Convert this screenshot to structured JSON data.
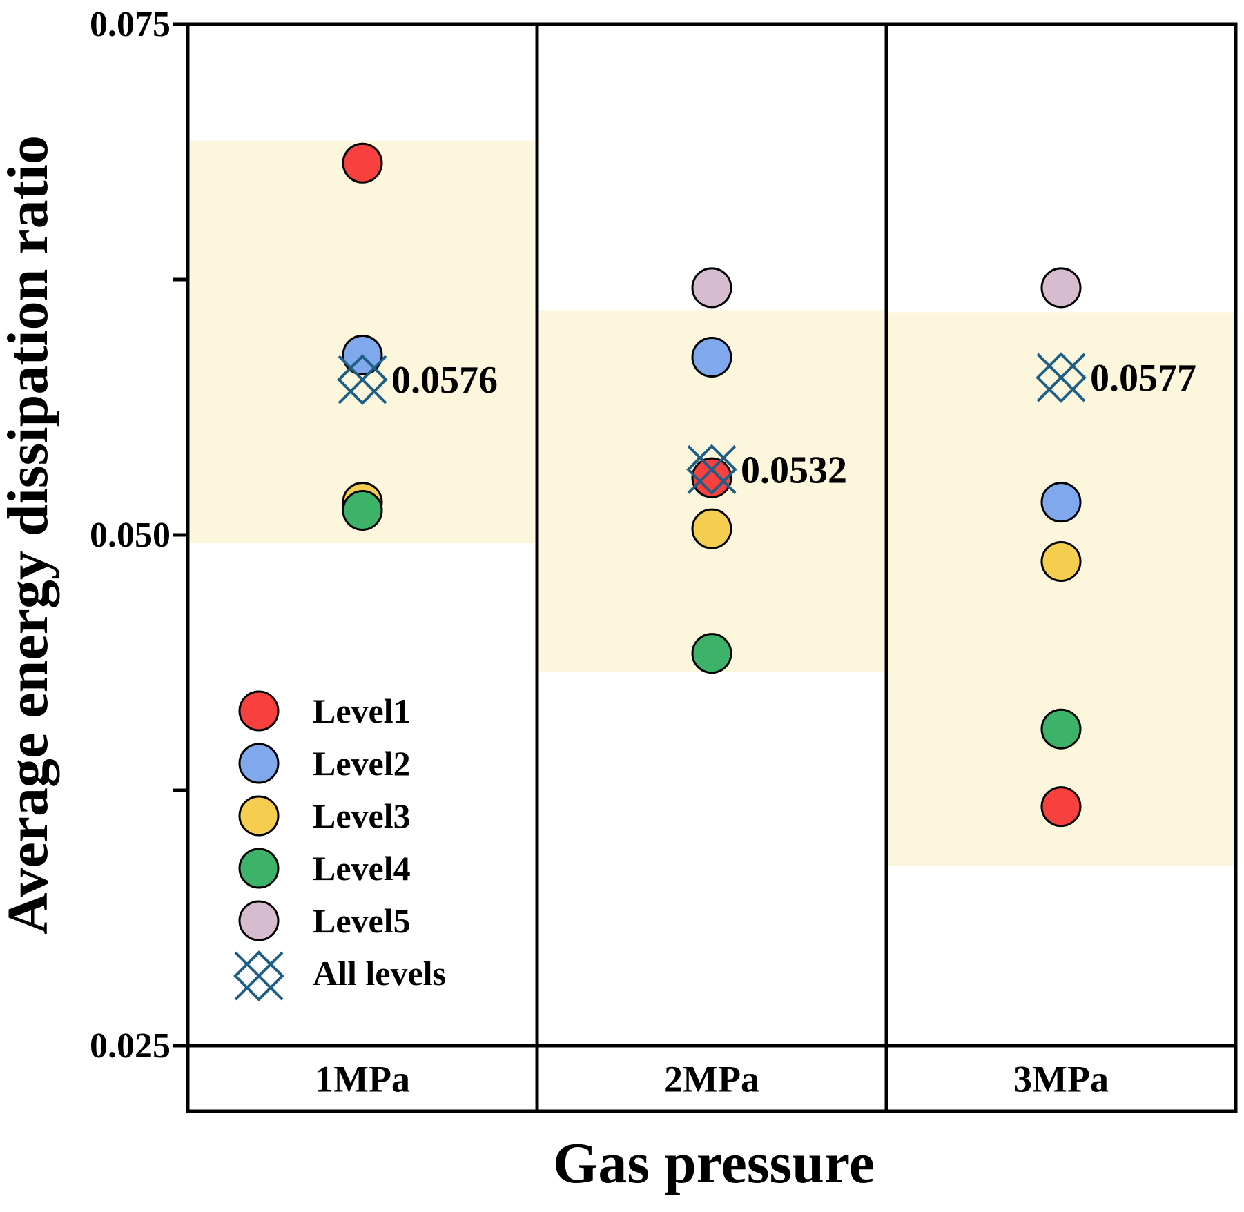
{
  "chart_data": {
    "type": "scatter",
    "xlabel": "Gas pressure",
    "ylabel": "Average energy dissipation ratio",
    "ylim": [
      0.025,
      0.075
    ],
    "yticks": [
      0.025,
      0.0375,
      0.05,
      0.0625,
      0.075
    ],
    "ytick_labels": [
      "0.025",
      "",
      "0.050",
      "",
      "0.075"
    ],
    "categories": [
      "1MPa",
      "2MPa",
      "3MPa"
    ],
    "band_color": "#FCF6DC",
    "bands": [
      {
        "category": "1MPa",
        "low": 0.0496,
        "high": 0.0693
      },
      {
        "category": "2MPa",
        "low": 0.0433,
        "high": 0.061
      },
      {
        "category": "3MPa",
        "low": 0.0338,
        "high": 0.0609
      }
    ],
    "series": [
      {
        "name": "Level1",
        "color": "#F8413E",
        "values": [
          0.0682,
          0.0528,
          0.0367
        ]
      },
      {
        "name": "Level2",
        "color": "#7FA9EC",
        "values": [
          0.0588,
          0.0587,
          0.0516
        ]
      },
      {
        "name": "Level3",
        "color": "#F6CE4F",
        "values": [
          0.0516,
          0.0503,
          0.0487
        ]
      },
      {
        "name": "Level4",
        "color": "#3DB36A",
        "values": [
          0.0512,
          0.0442,
          0.0405
        ]
      },
      {
        "name": "Level5",
        "color": "#D6BCCE",
        "values": [
          null,
          0.0621,
          0.0621
        ]
      }
    ],
    "all_levels": {
      "name": "All levels",
      "color": "#1F5F86",
      "values": [
        0.0576,
        0.0532,
        0.0577
      ],
      "labels": [
        "0.0576",
        "0.0532",
        "0.0577"
      ]
    },
    "legend_position": "bottom-left"
  }
}
